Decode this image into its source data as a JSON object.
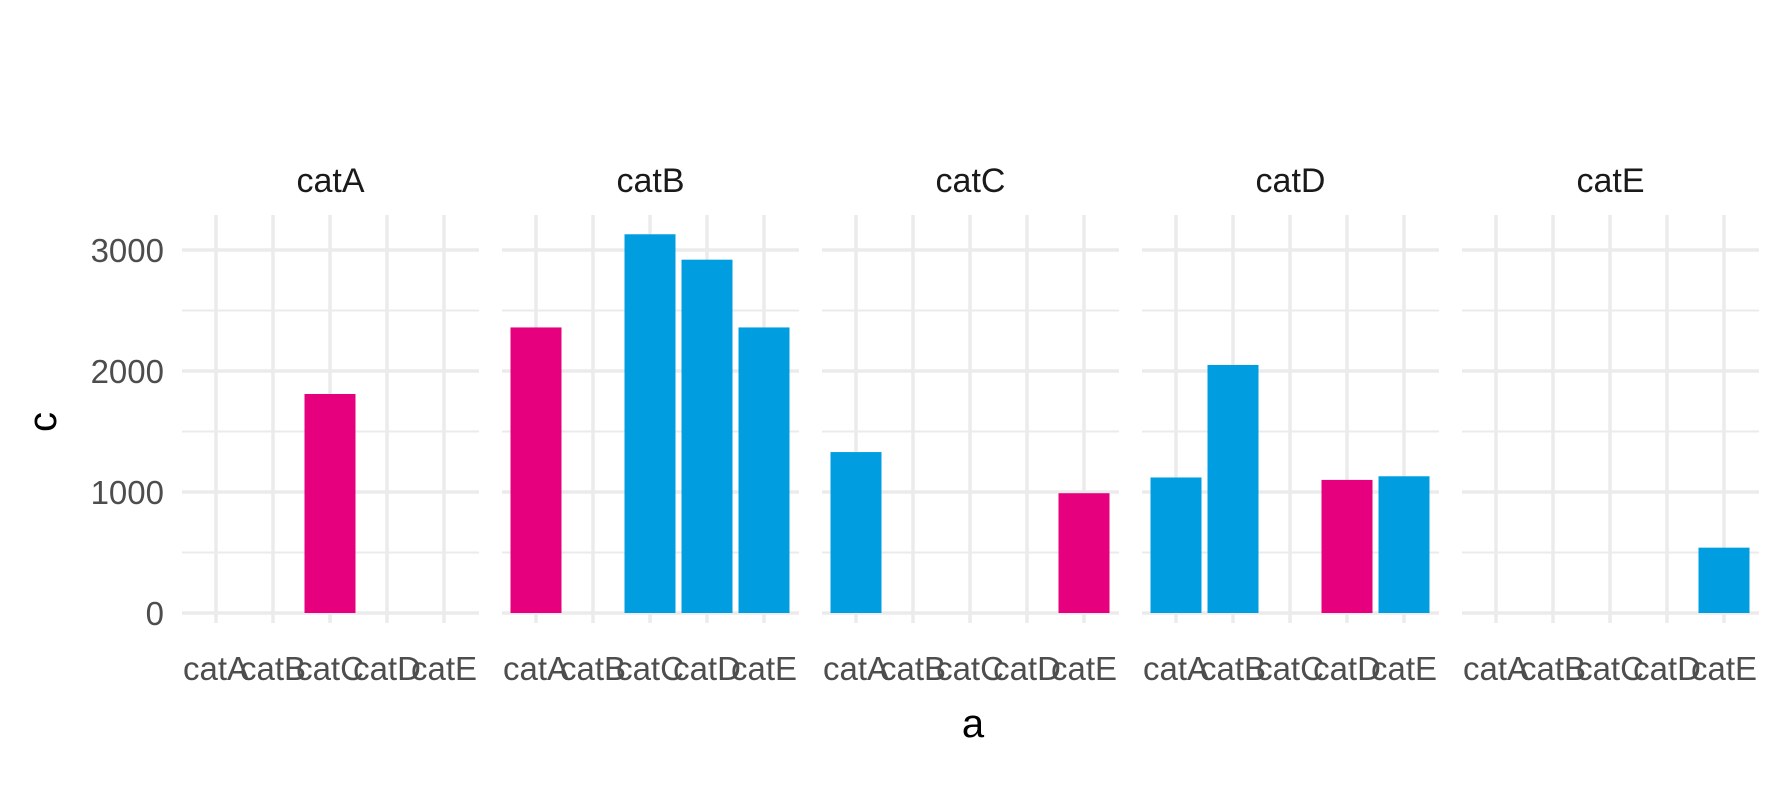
{
  "chart_data": {
    "type": "bar",
    "facet_by": "b",
    "facets": [
      "catA",
      "catB",
      "catC",
      "catD",
      "catE"
    ],
    "categories": [
      "catA",
      "catB",
      "catC",
      "catD",
      "catE"
    ],
    "xlabel": "a",
    "ylabel": "c",
    "ylim": [
      0,
      3300
    ],
    "yticks": [
      0,
      1000,
      2000,
      3000
    ],
    "grid": true,
    "legend": "none",
    "colors": {
      "pink": "#e6007e",
      "blue": "#009ee0"
    },
    "panels": [
      {
        "facet": "catA",
        "bars": [
          {
            "x": "catC",
            "value": 1810,
            "color": "pink"
          }
        ]
      },
      {
        "facet": "catB",
        "bars": [
          {
            "x": "catA",
            "value": 2360,
            "color": "pink"
          },
          {
            "x": "catC",
            "value": 3130,
            "color": "blue"
          },
          {
            "x": "catD",
            "value": 2920,
            "color": "blue"
          },
          {
            "x": "catE",
            "value": 2360,
            "color": "blue"
          }
        ]
      },
      {
        "facet": "catC",
        "bars": [
          {
            "x": "catA",
            "value": 1330,
            "color": "blue"
          },
          {
            "x": "catE",
            "value": 990,
            "color": "pink"
          }
        ]
      },
      {
        "facet": "catD",
        "bars": [
          {
            "x": "catA",
            "value": 1120,
            "color": "blue"
          },
          {
            "x": "catB",
            "value": 2050,
            "color": "blue"
          },
          {
            "x": "catD",
            "value": 1100,
            "color": "pink"
          },
          {
            "x": "catE",
            "value": 1130,
            "color": "blue"
          }
        ]
      },
      {
        "facet": "catE",
        "bars": [
          {
            "x": "catE",
            "value": 540,
            "color": "blue"
          }
        ]
      }
    ]
  }
}
